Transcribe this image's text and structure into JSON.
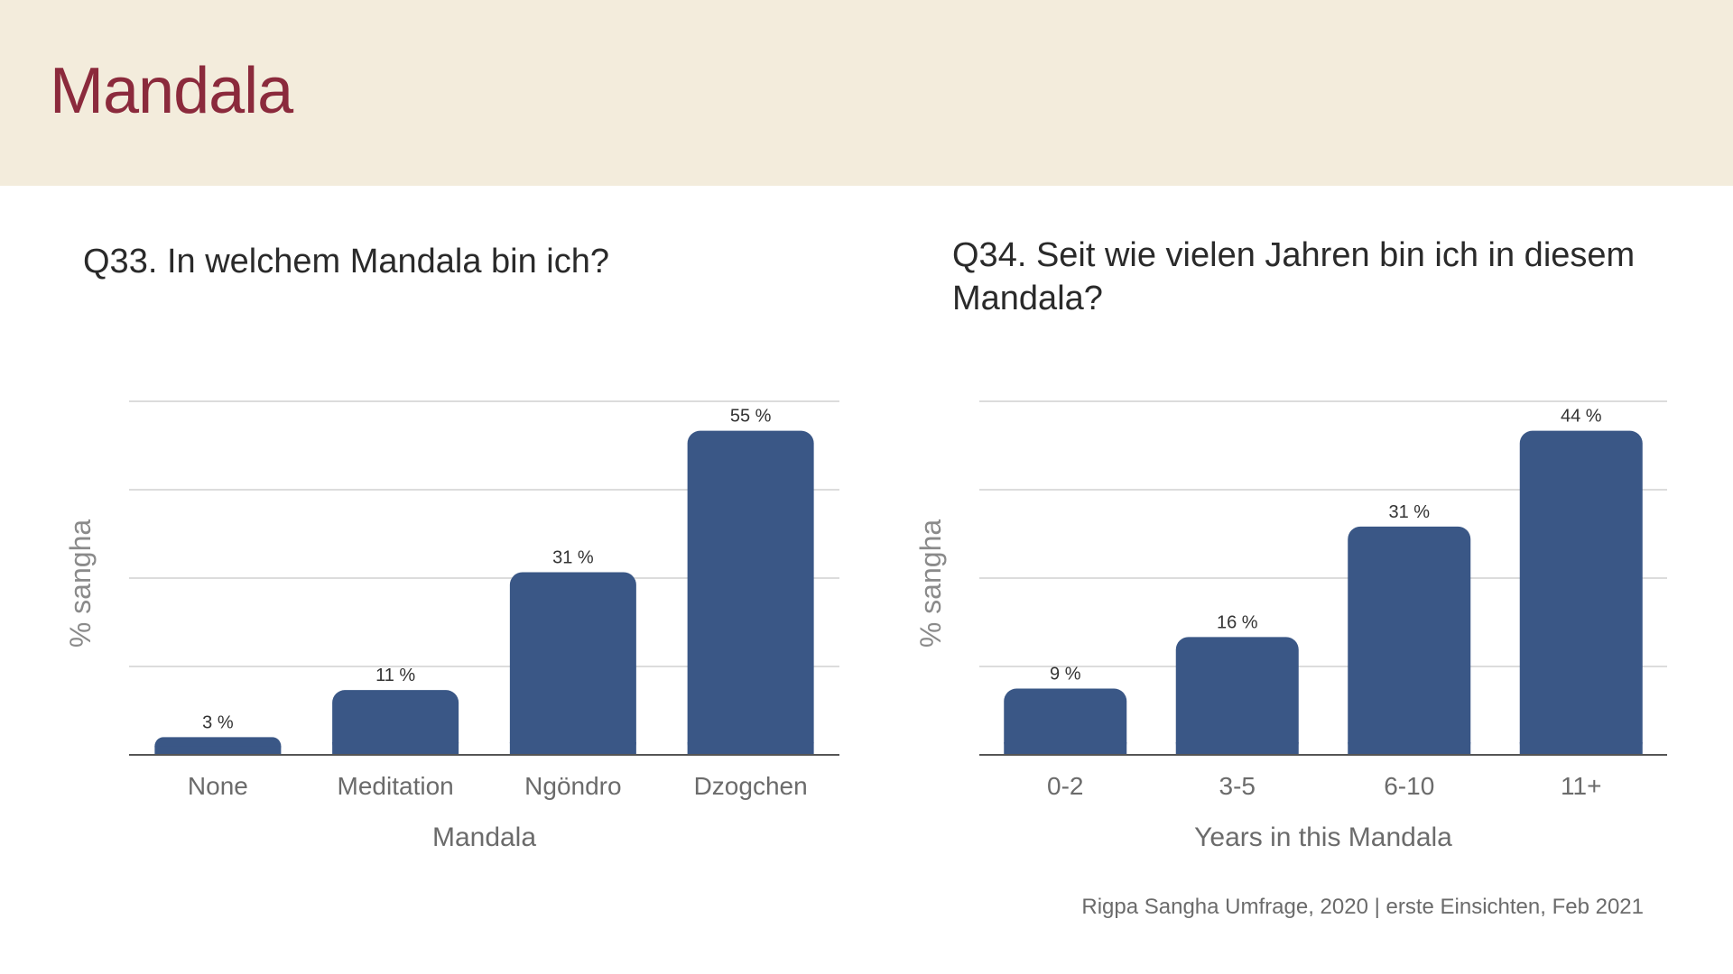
{
  "page": {
    "title": "Mandala",
    "footer": "Rigpa Sangha Umfrage, 2020  |  erste Einsichten, Feb 2021"
  },
  "colors": {
    "header_bg": "#f3ecdc",
    "title": "#8b2a3c",
    "bar": "#3a5786",
    "gridline": "#d0d0d0",
    "axis_text": "#6b6b6b"
  },
  "chart_data": [
    {
      "type": "bar",
      "title": "Q33. In welchem Mandala bin ich?",
      "categories": [
        "None",
        "Meditation",
        "Ngöndro",
        "Dzogchen"
      ],
      "values": [
        3,
        11,
        31,
        55
      ],
      "labels": [
        "3 %",
        "11 %",
        "31 %",
        "55 %"
      ],
      "xlabel": "Mandala",
      "ylabel": "% sangha",
      "ylim": [
        0,
        60
      ],
      "grid": true
    },
    {
      "type": "bar",
      "title": "Q34. Seit wie vielen Jahren bin ich in diesem Mandala?",
      "categories": [
        "0-2",
        "3-5",
        "6-10",
        "11+"
      ],
      "values": [
        9,
        16,
        31,
        44
      ],
      "labels": [
        "9 %",
        "16 %",
        "31 %",
        "44 %"
      ],
      "xlabel": "Years in this Mandala",
      "ylabel": "% sangha",
      "ylim": [
        0,
        48
      ],
      "grid": true
    }
  ]
}
